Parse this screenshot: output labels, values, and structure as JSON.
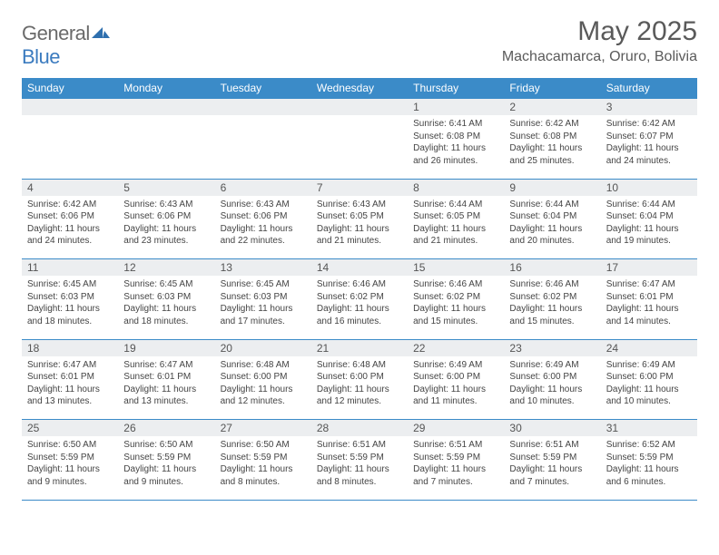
{
  "brand": {
    "part1": "General",
    "part2": "Blue"
  },
  "title": "May 2025",
  "location": "Machacamarca, Oruro, Bolivia",
  "colors": {
    "header_bg": "#3b8bc8",
    "header_fg": "#ffffff",
    "daynum_bg": "#eceef0",
    "rule": "#3b8bc8",
    "text": "#444444",
    "title_color": "#5a5a5a"
  },
  "dayHeaders": [
    "Sunday",
    "Monday",
    "Tuesday",
    "Wednesday",
    "Thursday",
    "Friday",
    "Saturday"
  ],
  "weeks": [
    [
      null,
      null,
      null,
      null,
      {
        "n": "1",
        "sr": "6:41 AM",
        "ss": "6:08 PM",
        "dl": "11 hours and 26 minutes."
      },
      {
        "n": "2",
        "sr": "6:42 AM",
        "ss": "6:08 PM",
        "dl": "11 hours and 25 minutes."
      },
      {
        "n": "3",
        "sr": "6:42 AM",
        "ss": "6:07 PM",
        "dl": "11 hours and 24 minutes."
      }
    ],
    [
      {
        "n": "4",
        "sr": "6:42 AM",
        "ss": "6:06 PM",
        "dl": "11 hours and 24 minutes."
      },
      {
        "n": "5",
        "sr": "6:43 AM",
        "ss": "6:06 PM",
        "dl": "11 hours and 23 minutes."
      },
      {
        "n": "6",
        "sr": "6:43 AM",
        "ss": "6:06 PM",
        "dl": "11 hours and 22 minutes."
      },
      {
        "n": "7",
        "sr": "6:43 AM",
        "ss": "6:05 PM",
        "dl": "11 hours and 21 minutes."
      },
      {
        "n": "8",
        "sr": "6:44 AM",
        "ss": "6:05 PM",
        "dl": "11 hours and 21 minutes."
      },
      {
        "n": "9",
        "sr": "6:44 AM",
        "ss": "6:04 PM",
        "dl": "11 hours and 20 minutes."
      },
      {
        "n": "10",
        "sr": "6:44 AM",
        "ss": "6:04 PM",
        "dl": "11 hours and 19 minutes."
      }
    ],
    [
      {
        "n": "11",
        "sr": "6:45 AM",
        "ss": "6:03 PM",
        "dl": "11 hours and 18 minutes."
      },
      {
        "n": "12",
        "sr": "6:45 AM",
        "ss": "6:03 PM",
        "dl": "11 hours and 18 minutes."
      },
      {
        "n": "13",
        "sr": "6:45 AM",
        "ss": "6:03 PM",
        "dl": "11 hours and 17 minutes."
      },
      {
        "n": "14",
        "sr": "6:46 AM",
        "ss": "6:02 PM",
        "dl": "11 hours and 16 minutes."
      },
      {
        "n": "15",
        "sr": "6:46 AM",
        "ss": "6:02 PM",
        "dl": "11 hours and 15 minutes."
      },
      {
        "n": "16",
        "sr": "6:46 AM",
        "ss": "6:02 PM",
        "dl": "11 hours and 15 minutes."
      },
      {
        "n": "17",
        "sr": "6:47 AM",
        "ss": "6:01 PM",
        "dl": "11 hours and 14 minutes."
      }
    ],
    [
      {
        "n": "18",
        "sr": "6:47 AM",
        "ss": "6:01 PM",
        "dl": "11 hours and 13 minutes."
      },
      {
        "n": "19",
        "sr": "6:47 AM",
        "ss": "6:01 PM",
        "dl": "11 hours and 13 minutes."
      },
      {
        "n": "20",
        "sr": "6:48 AM",
        "ss": "6:00 PM",
        "dl": "11 hours and 12 minutes."
      },
      {
        "n": "21",
        "sr": "6:48 AM",
        "ss": "6:00 PM",
        "dl": "11 hours and 12 minutes."
      },
      {
        "n": "22",
        "sr": "6:49 AM",
        "ss": "6:00 PM",
        "dl": "11 hours and 11 minutes."
      },
      {
        "n": "23",
        "sr": "6:49 AM",
        "ss": "6:00 PM",
        "dl": "11 hours and 10 minutes."
      },
      {
        "n": "24",
        "sr": "6:49 AM",
        "ss": "6:00 PM",
        "dl": "11 hours and 10 minutes."
      }
    ],
    [
      {
        "n": "25",
        "sr": "6:50 AM",
        "ss": "5:59 PM",
        "dl": "11 hours and 9 minutes."
      },
      {
        "n": "26",
        "sr": "6:50 AM",
        "ss": "5:59 PM",
        "dl": "11 hours and 9 minutes."
      },
      {
        "n": "27",
        "sr": "6:50 AM",
        "ss": "5:59 PM",
        "dl": "11 hours and 8 minutes."
      },
      {
        "n": "28",
        "sr": "6:51 AM",
        "ss": "5:59 PM",
        "dl": "11 hours and 8 minutes."
      },
      {
        "n": "29",
        "sr": "6:51 AM",
        "ss": "5:59 PM",
        "dl": "11 hours and 7 minutes."
      },
      {
        "n": "30",
        "sr": "6:51 AM",
        "ss": "5:59 PM",
        "dl": "11 hours and 7 minutes."
      },
      {
        "n": "31",
        "sr": "6:52 AM",
        "ss": "5:59 PM",
        "dl": "11 hours and 6 minutes."
      }
    ]
  ],
  "labels": {
    "sunrise": "Sunrise: ",
    "sunset": "Sunset: ",
    "daylight": "Daylight: "
  }
}
